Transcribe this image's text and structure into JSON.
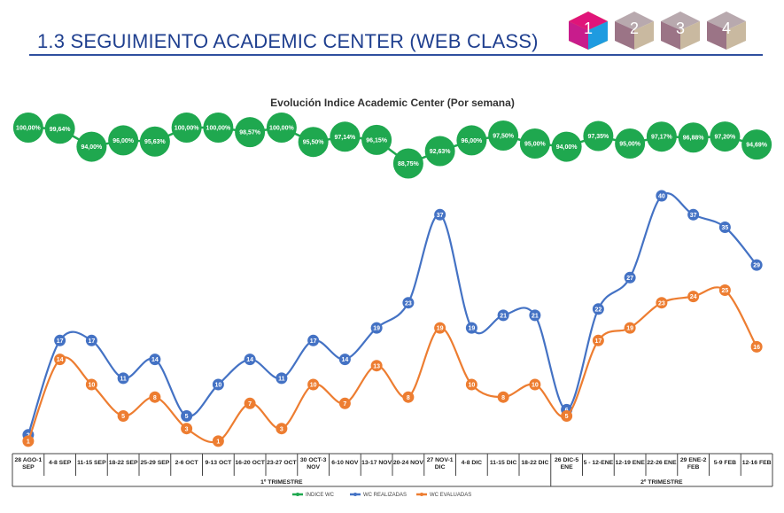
{
  "header": {
    "title": "1.3 SEGUIMIENTO ACADEMIC CENTER (WEB CLASS)",
    "nav": [
      "1",
      "2",
      "3",
      "4"
    ]
  },
  "chart_data": {
    "type": "line",
    "title": "Evolución Indice Academic Center (Por semana)",
    "categories": [
      "28 AGO-1 SEP",
      "4-8 SEP",
      "11-15 SEP",
      "18-22 SEP",
      "25-29 SEP",
      "2-6 OCT",
      "9-13 OCT",
      "16-20 OCT",
      "23-27 OCT",
      "30 OCT-3 NOV",
      "6-10 NOV",
      "13-17 NOV",
      "20-24 NOV",
      "27 NOV-1 DIC",
      "4-8 DIC",
      "11-15 DIC",
      "18-22 DIC",
      "26 DIC-5 ENE",
      "5 - 12-ENE",
      "12-19 ENE",
      "22-26 ENE",
      "29 ENE-2 FEB",
      "5-9 FEB",
      "12-16 FEB"
    ],
    "groups": [
      {
        "label": "1º TRIMESTRE",
        "start": 0,
        "end": 16
      },
      {
        "label": "2º TRIMESTRE",
        "start": 17,
        "end": 23
      }
    ],
    "series": [
      {
        "name": "INDICE WC",
        "color": "#1fa84f",
        "labels": [
          "100,00%",
          "99,64%",
          "94,00%",
          "96,00%",
          "95,63%",
          "100,00%",
          "100,00%",
          "98,57%",
          "100,00%",
          "95,50%",
          "97,14%",
          "96,15%",
          "88,75%",
          "92,63%",
          "96,00%",
          "97,50%",
          "95,00%",
          "94,00%",
          "97,35%",
          "95,00%",
          "97,17%",
          "96,88%",
          "97,20%",
          "94,69%"
        ],
        "values": [
          100.0,
          99.64,
          94.0,
          96.0,
          95.63,
          100.0,
          100.0,
          98.57,
          100.0,
          95.5,
          97.14,
          96.15,
          88.75,
          92.63,
          96.0,
          97.5,
          95.0,
          94.0,
          97.35,
          95.0,
          97.17,
          96.88,
          97.2,
          94.69
        ]
      },
      {
        "name": "WC REALIZADAS",
        "color": "#4472c4",
        "values": [
          2,
          17,
          17,
          11,
          14,
          5,
          10,
          14,
          11,
          17,
          14,
          19,
          23,
          37,
          19,
          21,
          21,
          6,
          22,
          27,
          40,
          37,
          35,
          29
        ]
      },
      {
        "name": "WC EVALUADAS",
        "color": "#ed7d31",
        "values": [
          1,
          14,
          10,
          5,
          8,
          3,
          1,
          7,
          3,
          10,
          7,
          13,
          8,
          19,
          10,
          8,
          10,
          5,
          17,
          19,
          23,
          24,
          25,
          16
        ]
      }
    ]
  }
}
